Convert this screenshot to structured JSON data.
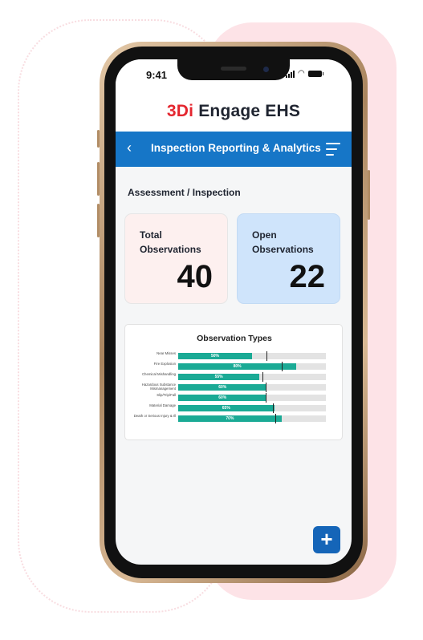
{
  "status": {
    "time": "9:41"
  },
  "brand": {
    "prefix": "3Di",
    "name": "Engage EHS"
  },
  "header": {
    "title": "Inspection Reporting & Analytics"
  },
  "section": {
    "title": "Assessment / Inspection"
  },
  "cards": {
    "total": {
      "label": "Total Observations",
      "value": "40"
    },
    "open": {
      "label": "Open Observations",
      "value": "22"
    }
  },
  "chart_data": {
    "type": "bar",
    "orientation": "horizontal",
    "title": "Observation Types",
    "categories": [
      "Near Misses",
      "Fire Explosion",
      "Chemical Mishandling",
      "Hazardous Substance Mismanagement",
      "Slip/Trip/Fall",
      "Material Damage",
      "Death or Serious Injury & Ill"
    ],
    "series": [
      {
        "values": [
          50,
          80,
          55,
          60,
          60,
          65,
          70
        ]
      }
    ],
    "value_labels": [
      "50%",
      "80%",
      "55%",
      "60%",
      "60%",
      "65%",
      "70%"
    ],
    "target_markers": [
      60,
      70,
      57,
      59,
      59,
      64,
      66
    ],
    "xlim": [
      0,
      100
    ],
    "colors": {
      "fill": "#1aaa95",
      "track": "#e3e3e3",
      "marker": "#222222"
    }
  },
  "fab": {
    "icon": "plus-icon",
    "label": "+"
  },
  "colors": {
    "brand_red": "#e4262f",
    "nav_blue": "#1676c7",
    "fab_blue": "#1565b8"
  }
}
